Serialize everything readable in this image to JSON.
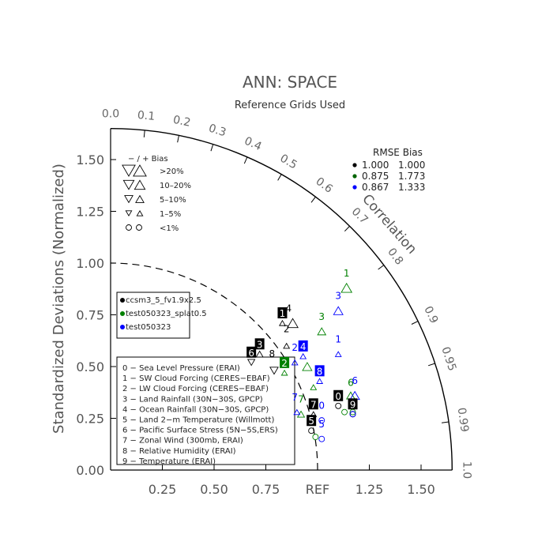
{
  "chart_data": {
    "type": "scatter",
    "title": "ANN: SPACE",
    "subtitle": "Reference Grids Used",
    "ylabel": "Standardized Deviations (Normalized)",
    "corr_label": "Correlation",
    "ref_label": "REF",
    "ylim": [
      0,
      1.65
    ],
    "xlim": [
      0,
      1.65
    ],
    "std_ticks": [
      "0.00",
      "0.25",
      "0.50",
      "0.75",
      "1.00",
      "1.25",
      "1.50"
    ],
    "x_ticks": [
      {
        "v": 0.25,
        "t": "0.25"
      },
      {
        "v": 0.5,
        "t": "0.50"
      },
      {
        "v": 0.75,
        "t": "0.75"
      },
      {
        "v": 1.0,
        "t": "REF"
      },
      {
        "v": 1.25,
        "t": "1.25"
      },
      {
        "v": 1.5,
        "t": "1.50"
      }
    ],
    "corr_ticks": [
      {
        "r": 0.0,
        "t": "0.0"
      },
      {
        "r": 0.1,
        "t": "0.1"
      },
      {
        "r": 0.2,
        "t": "0.2"
      },
      {
        "r": 0.3,
        "t": "0.3"
      },
      {
        "r": 0.4,
        "t": "0.4"
      },
      {
        "r": 0.5,
        "t": "0.5"
      },
      {
        "r": 0.6,
        "t": "0.6"
      },
      {
        "r": 0.7,
        "t": "0.7"
      },
      {
        "r": 0.8,
        "t": "0.8"
      },
      {
        "r": 0.9,
        "t": "0.9"
      },
      {
        "r": 0.95,
        "t": "0.95"
      },
      {
        "r": 0.99,
        "t": "0.99"
      },
      {
        "r": 1.0,
        "t": "1.0"
      }
    ],
    "bias_legend": {
      "header": "− / +    Bias",
      "rows": [
        {
          "label": ">20%",
          "size": 11,
          "shape": "triangle"
        },
        {
          "label": "10–20%",
          "size": 9,
          "shape": "triangle"
        },
        {
          "label": "5–10%",
          "size": 7,
          "shape": "triangle"
        },
        {
          "label": "1–5%",
          "size": 5,
          "shape": "triangle"
        },
        {
          "label": "<1%",
          "size": 5,
          "shape": "circle"
        }
      ]
    },
    "stats_header": "RMSE  Bias",
    "stats": [
      {
        "rmse": "1.000",
        "bias": "1.000",
        "color": "#000000"
      },
      {
        "rmse": "0.875",
        "bias": "1.773",
        "color": "#006400"
      },
      {
        "rmse": "0.867",
        "bias": "1.333",
        "color": "#0000ff"
      }
    ],
    "series": [
      {
        "name": "ccsm3_5_fv1.9x2.5",
        "color": "#000000",
        "points": [
          {
            "id": "0",
            "x": 1.1,
            "y": 0.31,
            "mk": "circle",
            "dir": "up",
            "sz": 5
          },
          {
            "id": "1",
            "x": 0.83,
            "y": 0.71,
            "mk": "triangle",
            "dir": "up",
            "sz": 5
          },
          {
            "id": "2",
            "x": 0.85,
            "y": 0.6,
            "mk": "triangle",
            "dir": "up",
            "sz": 5
          },
          {
            "id": "3",
            "x": 0.72,
            "y": 0.56,
            "mk": "triangle",
            "dir": "up",
            "sz": 6
          },
          {
            "id": "4",
            "x": 0.88,
            "y": 0.71,
            "mk": "triangle",
            "dir": "up",
            "sz": 9
          },
          {
            "id": "5",
            "x": 0.97,
            "y": 0.19,
            "mk": "circle",
            "dir": "up",
            "sz": 5
          },
          {
            "id": "6",
            "x": 0.68,
            "y": 0.52,
            "mk": "triangle",
            "dir": "down",
            "sz": 6
          },
          {
            "id": "7",
            "x": 0.98,
            "y": 0.27,
            "mk": "triangle",
            "dir": "up",
            "sz": 5
          },
          {
            "id": "8",
            "x": 0.79,
            "y": 0.48,
            "mk": "triangle",
            "dir": "down",
            "sz": 7
          },
          {
            "id": "9",
            "x": 1.17,
            "y": 0.27,
            "mk": "circle",
            "dir": "up",
            "sz": 5
          }
        ]
      },
      {
        "name": "test050323_splat0.5",
        "color": "#008000",
        "points": [
          {
            "id": "0",
            "x": 1.13,
            "y": 0.28,
            "mk": "circle",
            "dir": "up",
            "sz": 5
          },
          {
            "id": "1",
            "x": 1.14,
            "y": 0.88,
            "mk": "triangle",
            "dir": "up",
            "sz": 9
          },
          {
            "id": "2",
            "x": 0.84,
            "y": 0.47,
            "mk": "triangle",
            "dir": "up",
            "sz": 5
          },
          {
            "id": "3",
            "x": 1.02,
            "y": 0.67,
            "mk": "triangle",
            "dir": "up",
            "sz": 7
          },
          {
            "id": "4",
            "x": 0.95,
            "y": 0.5,
            "mk": "triangle",
            "dir": "up",
            "sz": 8
          },
          {
            "id": "5",
            "x": 0.99,
            "y": 0.16,
            "mk": "circle",
            "dir": "up",
            "sz": 5
          },
          {
            "id": "6",
            "x": 1.16,
            "y": 0.36,
            "mk": "triangle",
            "dir": "up",
            "sz": 7
          },
          {
            "id": "7",
            "x": 0.92,
            "y": 0.27,
            "mk": "triangle",
            "dir": "up",
            "sz": 6
          },
          {
            "id": "8",
            "x": 0.98,
            "y": 0.4,
            "mk": "triangle",
            "dir": "up",
            "sz": 5
          },
          {
            "id": "9",
            "x": 1.17,
            "y": 0.28,
            "mk": "circle",
            "dir": "up",
            "sz": 5
          }
        ]
      },
      {
        "name": "test050323",
        "color": "#0000ff",
        "points": [
          {
            "id": "0",
            "x": 1.02,
            "y": 0.24,
            "mk": "circle",
            "dir": "up",
            "sz": 5
          },
          {
            "id": "1",
            "x": 1.1,
            "y": 0.56,
            "mk": "triangle",
            "dir": "up",
            "sz": 5
          },
          {
            "id": "2",
            "x": 0.89,
            "y": 0.52,
            "mk": "triangle",
            "dir": "up",
            "sz": 5
          },
          {
            "id": "3",
            "x": 1.1,
            "y": 0.77,
            "mk": "triangle",
            "dir": "up",
            "sz": 8
          },
          {
            "id": "4",
            "x": 0.93,
            "y": 0.55,
            "mk": "triangle",
            "dir": "up",
            "sz": 5
          },
          {
            "id": "5",
            "x": 1.02,
            "y": 0.15,
            "mk": "circle",
            "dir": "up",
            "sz": 5
          },
          {
            "id": "6",
            "x": 1.18,
            "y": 0.36,
            "mk": "triangle",
            "dir": "up",
            "sz": 8
          },
          {
            "id": "7",
            "x": 0.9,
            "y": 0.28,
            "mk": "triangle",
            "dir": "up",
            "sz": 5
          },
          {
            "id": "8",
            "x": 1.01,
            "y": 0.43,
            "mk": "triangle",
            "dir": "up",
            "sz": 5
          },
          {
            "id": "9",
            "x": 1.17,
            "y": 0.27,
            "mk": "circle",
            "dir": "up",
            "sz": 5
          }
        ]
      }
    ],
    "boxed_labels": [
      {
        "id": "0",
        "series": 0,
        "x": 1.1,
        "y": 0.31
      },
      {
        "id": "1",
        "series": 0,
        "x": 0.83,
        "y": 0.71
      },
      {
        "id": "3",
        "series": 0,
        "x": 0.72,
        "y": 0.56
      },
      {
        "id": "5",
        "series": 0,
        "x": 0.97,
        "y": 0.19
      },
      {
        "id": "6",
        "series": 0,
        "x": 0.68,
        "y": 0.52
      },
      {
        "id": "7",
        "series": 0,
        "x": 0.98,
        "y": 0.27
      },
      {
        "id": "9",
        "series": 0,
        "x": 1.17,
        "y": 0.27
      },
      {
        "id": "2",
        "series": 1,
        "x": 0.84,
        "y": 0.47
      },
      {
        "id": "4",
        "series": 2,
        "x": 0.93,
        "y": 0.55
      },
      {
        "id": "8",
        "series": 2,
        "x": 1.01,
        "y": 0.43
      }
    ],
    "plain_labels": [
      {
        "id": "4",
        "series": 0,
        "x": 0.86,
        "y": 0.72
      },
      {
        "id": "2",
        "series": 0,
        "x": 0.85,
        "y": 0.62
      },
      {
        "id": "8",
        "series": 0,
        "x": 0.78,
        "y": 0.5
      },
      {
        "id": "1",
        "series": 1,
        "x": 1.14,
        "y": 0.89
      },
      {
        "id": "3",
        "series": 1,
        "x": 1.02,
        "y": 0.68
      },
      {
        "id": "6",
        "series": 1,
        "x": 1.16,
        "y": 0.36
      },
      {
        "id": "7",
        "series": 1,
        "x": 0.92,
        "y": 0.28
      },
      {
        "id": "3",
        "series": 2,
        "x": 1.1,
        "y": 0.78
      },
      {
        "id": "1",
        "series": 2,
        "x": 1.1,
        "y": 0.57
      },
      {
        "id": "2",
        "series": 2,
        "x": 0.89,
        "y": 0.53
      },
      {
        "id": "0",
        "series": 2,
        "x": 1.02,
        "y": 0.25
      },
      {
        "id": "5",
        "series": 2,
        "x": 1.02,
        "y": 0.16
      },
      {
        "id": "6",
        "series": 2,
        "x": 1.18,
        "y": 0.37
      },
      {
        "id": "7",
        "series": 2,
        "x": 0.89,
        "y": 0.29
      }
    ],
    "variables": [
      "0 − Sea Level Pressure (ERAI)",
      "1 − SW Cloud Forcing (CERES−EBAF)",
      "2 − LW Cloud Forcing (CERES−EBAF)",
      "3 − Land Rainfall (30N−30S, GPCP)",
      "4 − Ocean Rainfall (30N−30S, GPCP)",
      "5 − Land 2−m Temperature (Willmott)",
      "6 − Pacific Surface Stress (5N−5S,ERS)",
      "7 − Zonal Wind (300mb, ERAI)",
      "8 − Relative Humidity (ERAI)",
      "9 − Temperature (ERAI)"
    ]
  }
}
